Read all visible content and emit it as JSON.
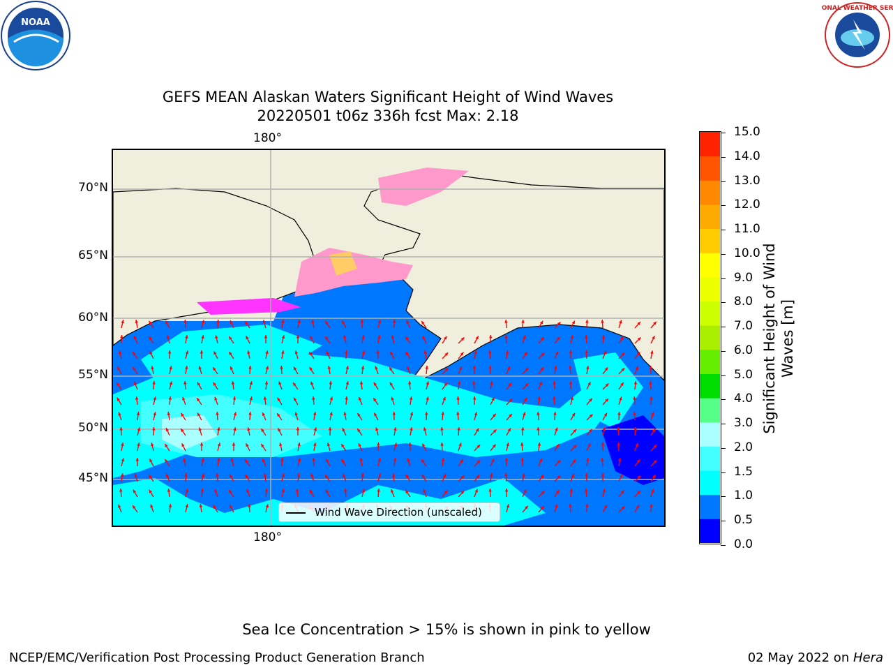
{
  "header": {
    "title_line1": "GEFS MEAN Alaskan Waters Significant Height of Wind Waves",
    "title_line2": "20220501 t06z 336h fcst   Max: 2.18"
  },
  "logos": {
    "left": {
      "icon": "noaa-logo",
      "text": "NOAA"
    },
    "right": {
      "icon": "nws-logo",
      "text": "NATIONAL WEATHER SERVICE"
    }
  },
  "map": {
    "lon_label_top": "180°",
    "lon_label_bottom": "180°",
    "lat_labels": [
      "70°N",
      "65°N",
      "60°N",
      "55°N",
      "50°N",
      "45°N"
    ],
    "legend_label": "Wind Wave Direction (unscaled)",
    "land_color": "#f0eedc",
    "arrow_color": "#ff0000",
    "ice_colors": [
      "#ff33ff",
      "#ff99cc",
      "#ffcc66",
      "#ffff33"
    ]
  },
  "colorbar": {
    "label": "Significant Height of Wind Waves [m]",
    "ticks": [
      "15.0",
      "14.0",
      "13.0",
      "12.0",
      "11.0",
      "10.0",
      "9.0",
      "8.0",
      "7.0",
      "6.0",
      "5.0",
      "4.0",
      "3.0",
      "2.0",
      "1.5",
      "1.0",
      "0.5",
      "0.0"
    ],
    "colors": [
      "#0000ff",
      "#0077ff",
      "#00ffff",
      "#44ffff",
      "#aaffff",
      "#55ff88",
      "#00dd00",
      "#66ee00",
      "#aaee00",
      "#ccff00",
      "#eeff00",
      "#ffff00",
      "#ffcc00",
      "#ffaa00",
      "#ff8800",
      "#ff5500",
      "#ff2200"
    ]
  },
  "notes": {
    "sea_ice": "Sea Ice Concentration > 15% is shown in pink to yellow",
    "footer_left": "NCEP/EMC/Verification Post Processing Product Generation Branch",
    "footer_right_prefix": "02 May 2022 on ",
    "footer_right_host": "Hera"
  }
}
